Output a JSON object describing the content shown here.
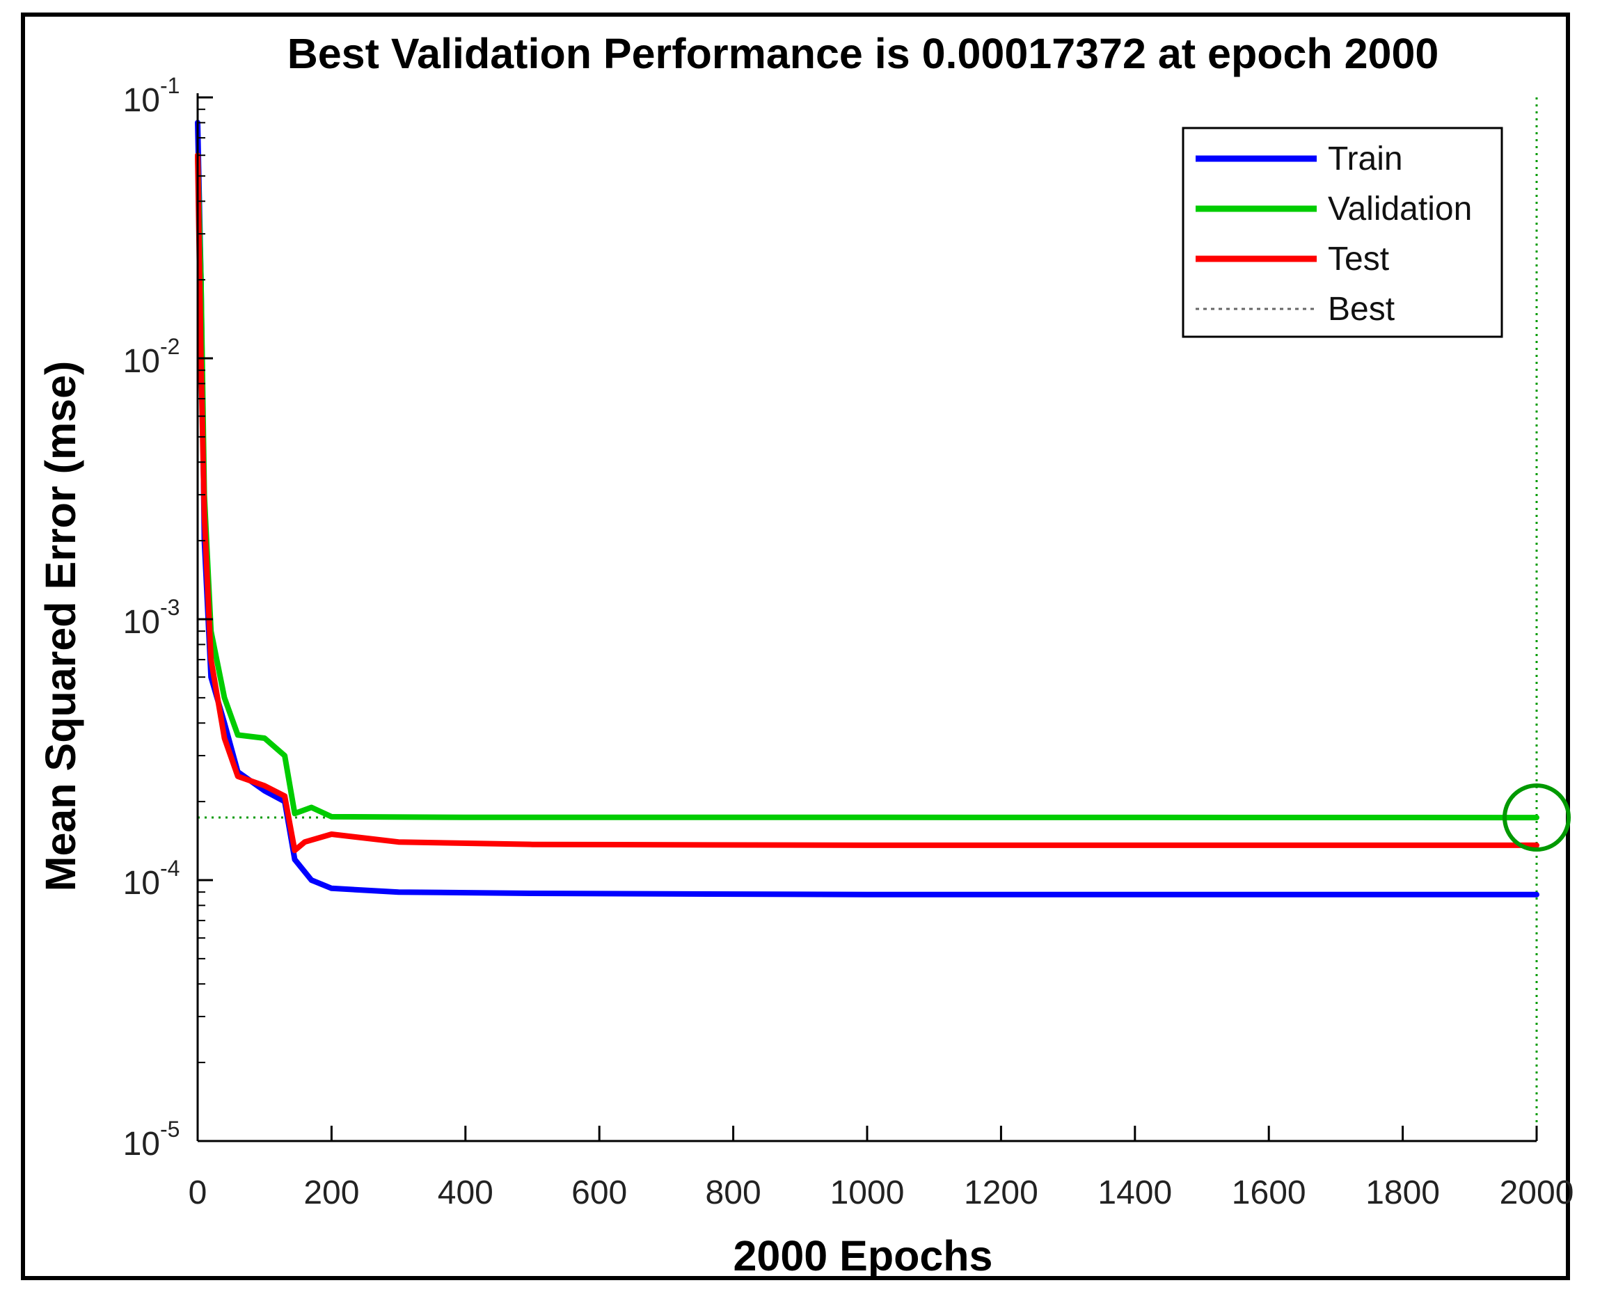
{
  "chart_data": {
    "type": "line",
    "title": "Best Validation Performance is 0.00017372 at epoch 2000",
    "xlabel": "2000 Epochs",
    "ylabel": "Mean Squared Error  (mse)",
    "xlim": [
      0,
      2000
    ],
    "ylim": [
      1e-05,
      0.1
    ],
    "yscale": "log",
    "x_ticks": [
      0,
      200,
      400,
      600,
      800,
      1000,
      1200,
      1400,
      1600,
      1800,
      2000
    ],
    "y_ticks": [
      {
        "base": "10",
        "exp": "-5",
        "value": 1e-05
      },
      {
        "base": "10",
        "exp": "-4",
        "value": 0.0001
      },
      {
        "base": "10",
        "exp": "-3",
        "value": 0.001
      },
      {
        "base": "10",
        "exp": "-2",
        "value": 0.01
      },
      {
        "base": "10",
        "exp": "-1",
        "value": 0.1
      }
    ],
    "legend_position": "top-right",
    "series": [
      {
        "name": "Train",
        "color": "#0000ff",
        "points": [
          [
            0,
            0.08
          ],
          [
            5,
            0.02
          ],
          [
            10,
            0.002
          ],
          [
            20,
            0.0006
          ],
          [
            40,
            0.0004
          ],
          [
            60,
            0.00026
          ],
          [
            100,
            0.00022
          ],
          [
            130,
            0.0002
          ],
          [
            145,
            0.00012
          ],
          [
            170,
            0.0001
          ],
          [
            200,
            9.3e-05
          ],
          [
            300,
            9e-05
          ],
          [
            500,
            8.9e-05
          ],
          [
            1000,
            8.8e-05
          ],
          [
            2000,
            8.8e-05
          ]
        ]
      },
      {
        "name": "Validation",
        "color": "#00cc00",
        "points": [
          [
            0,
            0.06
          ],
          [
            5,
            0.02
          ],
          [
            10,
            0.003
          ],
          [
            20,
            0.0009
          ],
          [
            40,
            0.0005
          ],
          [
            60,
            0.00036
          ],
          [
            100,
            0.00035
          ],
          [
            130,
            0.0003
          ],
          [
            145,
            0.00018
          ],
          [
            170,
            0.00019
          ],
          [
            200,
            0.000175
          ],
          [
            400,
            0.000174
          ],
          [
            1000,
            0.000174
          ],
          [
            2000,
            0.00017372
          ]
        ]
      },
      {
        "name": "Test",
        "color": "#ff0000",
        "points": [
          [
            0,
            0.06
          ],
          [
            5,
            0.01
          ],
          [
            10,
            0.0025
          ],
          [
            20,
            0.0007
          ],
          [
            40,
            0.00035
          ],
          [
            60,
            0.00025
          ],
          [
            100,
            0.00023
          ],
          [
            130,
            0.00021
          ],
          [
            145,
            0.00013
          ],
          [
            160,
            0.00014
          ],
          [
            200,
            0.00015
          ],
          [
            300,
            0.00014
          ],
          [
            500,
            0.000137
          ],
          [
            1000,
            0.000136
          ],
          [
            2000,
            0.000136
          ]
        ]
      }
    ],
    "best": {
      "name": "Best",
      "epoch": 2000,
      "value": 0.00017372,
      "color": "#009900"
    }
  }
}
